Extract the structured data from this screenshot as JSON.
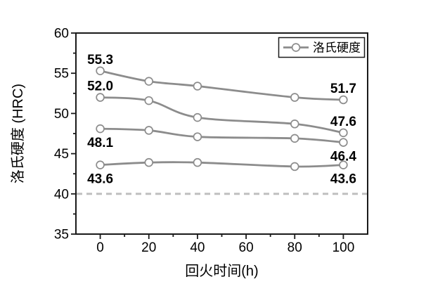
{
  "figure": {
    "background": "#ffffff"
  },
  "chart_data": {
    "type": "line",
    "title": "",
    "xlabel": "回火时间(h)",
    "ylabel": "洛氏硬度 (HRC)",
    "xlim": [
      -10,
      110
    ],
    "ylim": [
      35,
      60
    ],
    "x_ticks": [
      0,
      20,
      40,
      60,
      80,
      100
    ],
    "x_minor_ticks": [
      10,
      30,
      50,
      70,
      90
    ],
    "y_ticks": [
      35,
      40,
      45,
      50,
      55,
      60
    ],
    "y_minor_ticks": [
      37.5,
      42.5,
      47.5,
      52.5,
      57.5
    ],
    "grid": false,
    "legend": {
      "position": "top-right",
      "entries": [
        {
          "label": "洛氏硬度",
          "marker": "line-circle"
        }
      ]
    },
    "x": [
      0,
      20,
      40,
      80,
      100
    ],
    "series": [
      {
        "name": "curve-1",
        "values": [
          55.3,
          54.0,
          53.4,
          52.0,
          51.7
        ]
      },
      {
        "name": "curve-2",
        "values": [
          52.0,
          51.6,
          49.5,
          48.7,
          47.6
        ]
      },
      {
        "name": "curve-3",
        "values": [
          48.1,
          47.9,
          47.1,
          46.9,
          46.4
        ]
      },
      {
        "name": "curve-4",
        "values": [
          43.6,
          43.9,
          43.9,
          43.4,
          43.6
        ]
      }
    ],
    "annotations": [
      {
        "text": "55.3",
        "x": 0,
        "y": 55.3,
        "placement": "above"
      },
      {
        "text": "52.0",
        "x": 0,
        "y": 52.0,
        "placement": "above"
      },
      {
        "text": "48.1",
        "x": 0,
        "y": 48.1,
        "placement": "below"
      },
      {
        "text": "43.6",
        "x": 0,
        "y": 43.6,
        "placement": "below"
      },
      {
        "text": "51.7",
        "x": 100,
        "y": 51.7,
        "placement": "above"
      },
      {
        "text": "47.6",
        "x": 100,
        "y": 47.6,
        "placement": "above"
      },
      {
        "text": "46.4",
        "x": 100,
        "y": 46.4,
        "placement": "below"
      },
      {
        "text": "43.6",
        "x": 100,
        "y": 43.6,
        "placement": "below"
      }
    ],
    "reference_line": {
      "y": 40,
      "style": "dashed"
    },
    "colors": {
      "series_line": "#8c8c8c",
      "marker_fill": "#ffffff",
      "marker_stroke": "#8c8c8c",
      "reference_line": "#bfbfbf",
      "axis": "#1a1a1a",
      "text": "#000000"
    }
  }
}
